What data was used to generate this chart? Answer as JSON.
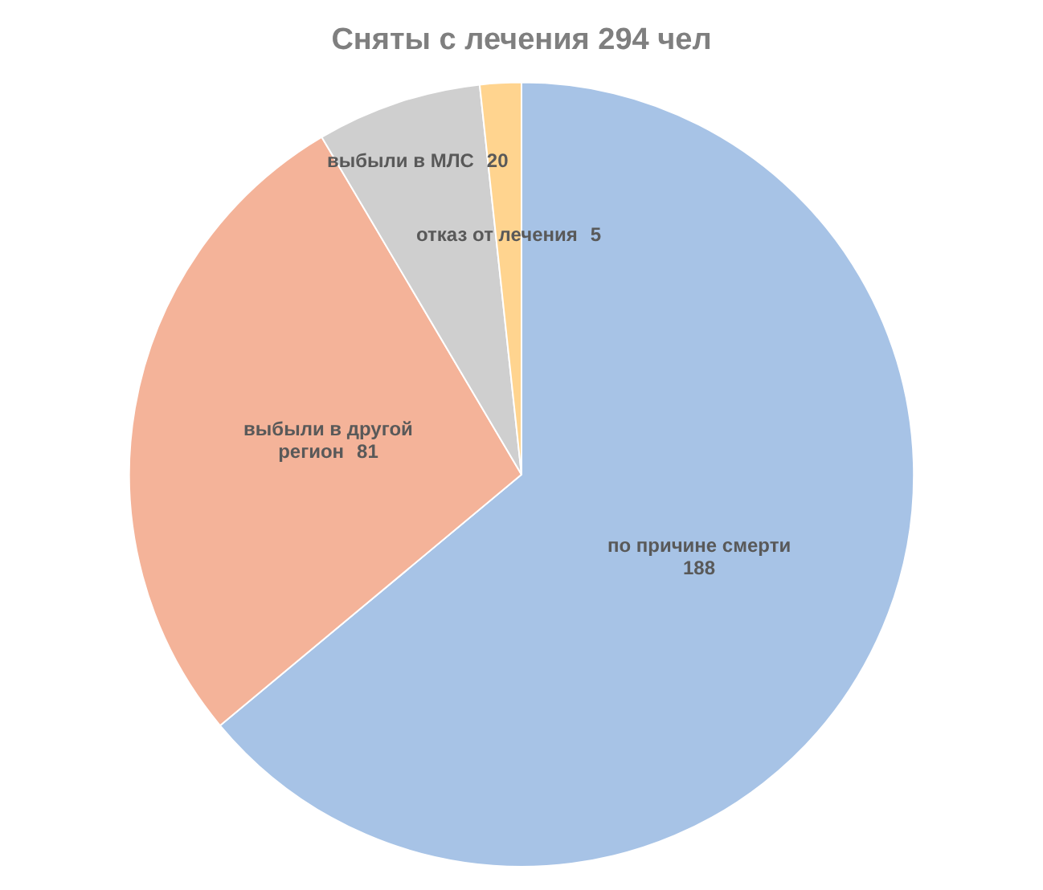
{
  "chart_data": {
    "type": "pie",
    "title": "Сняты с лечения 294 чел",
    "categories": [
      "по причине смерти",
      "выбыли в другой регион",
      "выбыли в МЛС",
      "отказ от лечения"
    ],
    "values": [
      188,
      81,
      20,
      5
    ],
    "colors": [
      "#a7c3e6",
      "#f4b399",
      "#cfcfcf",
      "#ffd48f"
    ],
    "data_labels": true,
    "legend": false
  }
}
